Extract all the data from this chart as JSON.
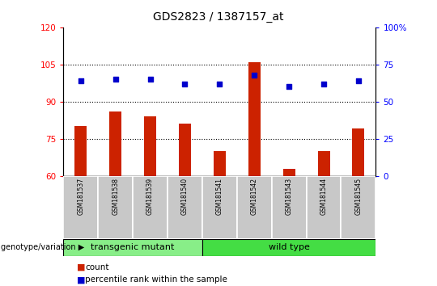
{
  "title": "GDS2823 / 1387157_at",
  "samples": [
    "GSM181537",
    "GSM181538",
    "GSM181539",
    "GSM181540",
    "GSM181541",
    "GSM181542",
    "GSM181543",
    "GSM181544",
    "GSM181545"
  ],
  "counts": [
    80,
    86,
    84,
    81,
    70,
    106,
    63,
    70,
    79
  ],
  "percentile_ranks": [
    64,
    65,
    65,
    62,
    62,
    68,
    60,
    62,
    64
  ],
  "left_ylim": [
    60,
    120
  ],
  "right_ylim": [
    0,
    100
  ],
  "left_yticks": [
    60,
    75,
    90,
    105,
    120
  ],
  "right_yticks": [
    0,
    25,
    50,
    75,
    100
  ],
  "bar_color": "#cc2200",
  "dot_color": "#0000cc",
  "groups": [
    {
      "label": "transgenic mutant",
      "start": 0,
      "end": 4,
      "color": "#88ee88"
    },
    {
      "label": "wild type",
      "start": 4,
      "end": 9,
      "color": "#44dd44"
    }
  ],
  "group_label": "genotype/variation",
  "legend_count_label": "count",
  "legend_percentile_label": "percentile rank within the sample",
  "background_color": "#ffffff",
  "tick_label_area_color": "#c8c8c8",
  "bar_width": 0.35
}
